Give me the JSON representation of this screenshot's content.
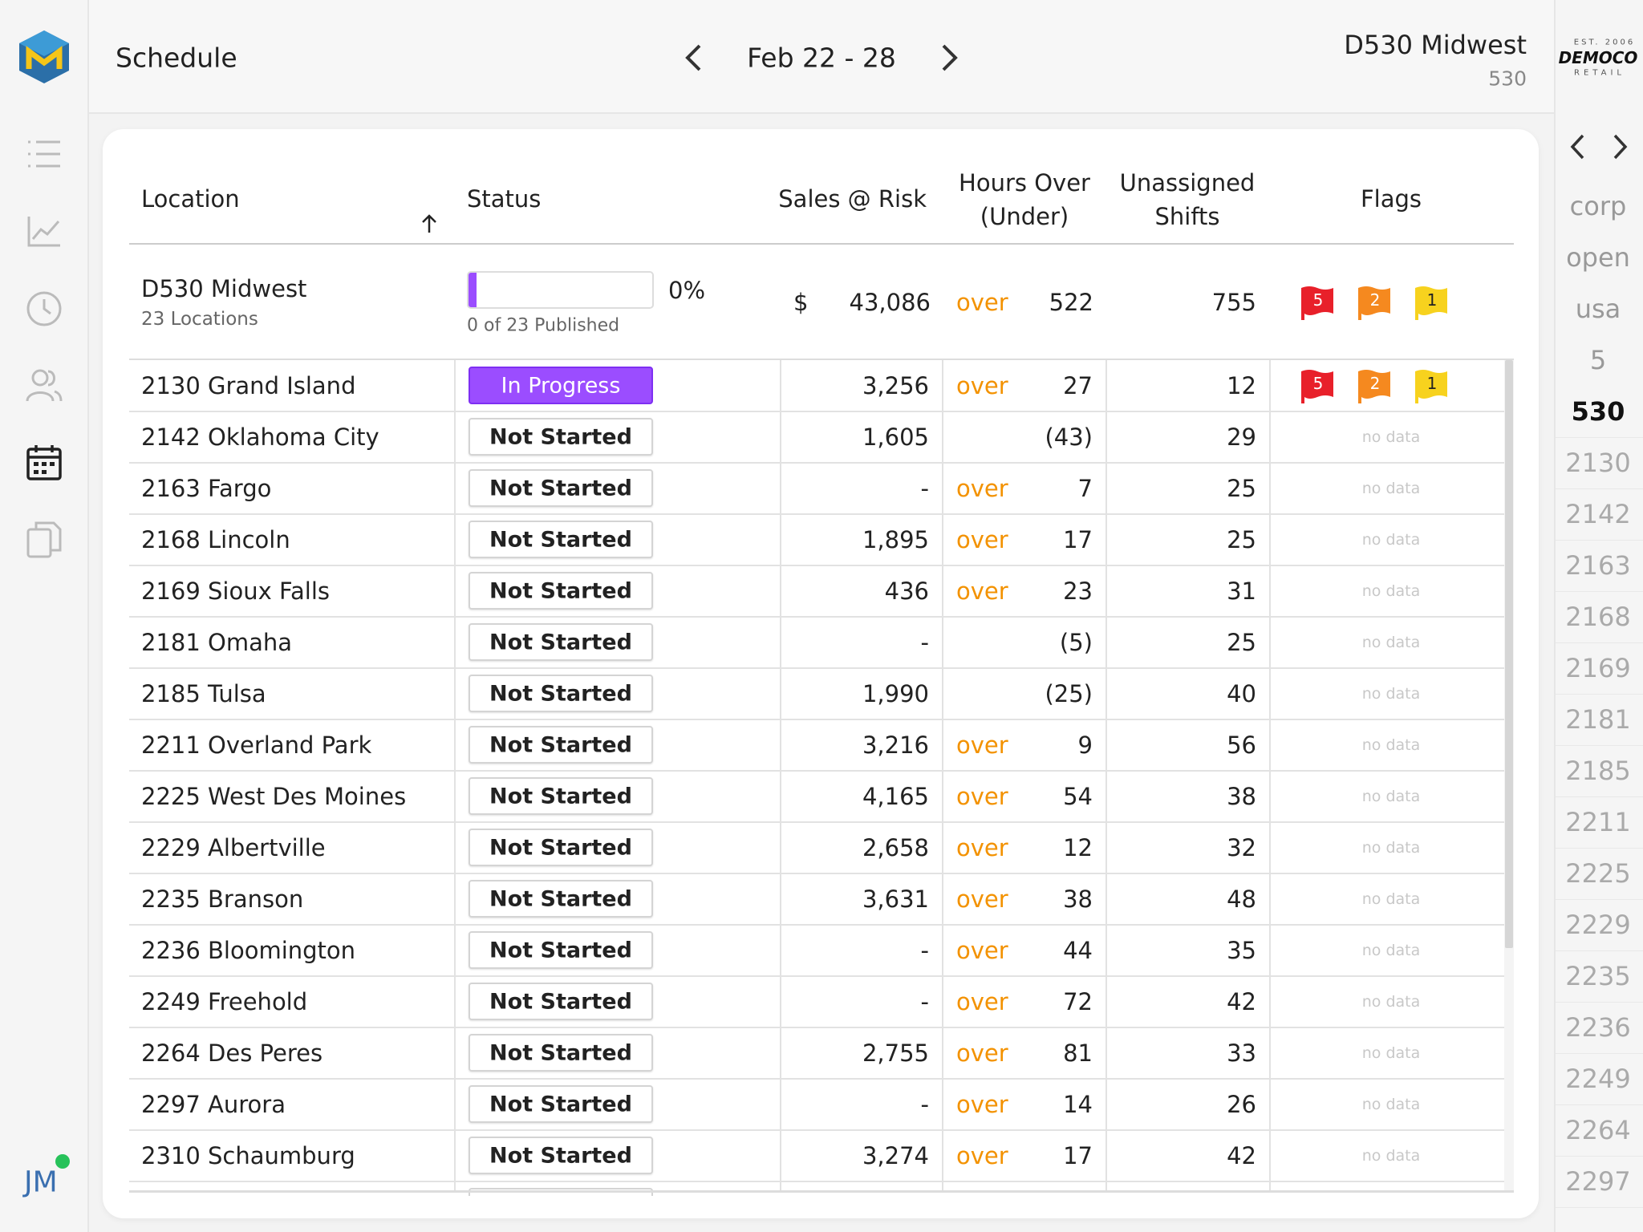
{
  "header": {
    "title": "Schedule",
    "date_range": "Feb 22 - 28",
    "district": "D530 Midwest",
    "district_id": "530",
    "brand": {
      "est": "EST. 2006",
      "name": "DEMOCO",
      "tagline": "RETAIL"
    }
  },
  "user": {
    "initials": "JM"
  },
  "table": {
    "columns": [
      "Location",
      "Status",
      "Sales @ Risk",
      "Hours Over (Under)",
      "Unassigned Shifts",
      "Flags"
    ],
    "summary": {
      "location": "D530 Midwest",
      "sublabel": "23 Locations",
      "progress": "0%",
      "published": "0 of 23 Published",
      "currency": "$",
      "sales": "43,086",
      "over": "over",
      "hours": "522",
      "unassigned": "755",
      "flags": [
        5,
        2,
        1
      ]
    },
    "rows": [
      {
        "location": "2130 Grand Island",
        "status": "In Progress",
        "sales": "3,256",
        "over": "over",
        "hours": "27",
        "unassigned": "12",
        "flags": [
          5,
          2,
          1
        ]
      },
      {
        "location": "2142 Oklahoma City",
        "status": "Not Started",
        "sales": "1,605",
        "over": null,
        "hours": "(43)",
        "unassigned": "29",
        "flags": "no data"
      },
      {
        "location": "2163 Fargo",
        "status": "Not Started",
        "sales": "-",
        "over": "over",
        "hours": "7",
        "unassigned": "25",
        "flags": "no data"
      },
      {
        "location": "2168 Lincoln",
        "status": "Not Started",
        "sales": "1,895",
        "over": "over",
        "hours": "17",
        "unassigned": "25",
        "flags": "no data"
      },
      {
        "location": "2169 Sioux Falls",
        "status": "Not Started",
        "sales": "436",
        "over": "over",
        "hours": "23",
        "unassigned": "31",
        "flags": "no data"
      },
      {
        "location": "2181 Omaha",
        "status": "Not Started",
        "sales": "-",
        "over": null,
        "hours": "(5)",
        "unassigned": "25",
        "flags": "no data"
      },
      {
        "location": "2185 Tulsa",
        "status": "Not Started",
        "sales": "1,990",
        "over": null,
        "hours": "(25)",
        "unassigned": "40",
        "flags": "no data"
      },
      {
        "location": "2211 Overland Park",
        "status": "Not Started",
        "sales": "3,216",
        "over": "over",
        "hours": "9",
        "unassigned": "56",
        "flags": "no data"
      },
      {
        "location": "2225 West Des Moines",
        "status": "Not Started",
        "sales": "4,165",
        "over": "over",
        "hours": "54",
        "unassigned": "38",
        "flags": "no data"
      },
      {
        "location": "2229 Albertville",
        "status": "Not Started",
        "sales": "2,658",
        "over": "over",
        "hours": "12",
        "unassigned": "32",
        "flags": "no data"
      },
      {
        "location": "2235 Branson",
        "status": "Not Started",
        "sales": "3,631",
        "over": "over",
        "hours": "38",
        "unassigned": "48",
        "flags": "no data"
      },
      {
        "location": "2236 Bloomington",
        "status": "Not Started",
        "sales": "-",
        "over": "over",
        "hours": "44",
        "unassigned": "35",
        "flags": "no data"
      },
      {
        "location": "2249 Freehold",
        "status": "Not Started",
        "sales": "-",
        "over": "over",
        "hours": "72",
        "unassigned": "42",
        "flags": "no data"
      },
      {
        "location": "2264 Des Peres",
        "status": "Not Started",
        "sales": "2,755",
        "over": "over",
        "hours": "81",
        "unassigned": "33",
        "flags": "no data"
      },
      {
        "location": "2297 Aurora",
        "status": "Not Started",
        "sales": "-",
        "over": "over",
        "hours": "14",
        "unassigned": "26",
        "flags": "no data"
      },
      {
        "location": "2310 Schaumburg",
        "status": "Not Started",
        "sales": "3,274",
        "over": "over",
        "hours": "17",
        "unassigned": "42",
        "flags": "no data"
      }
    ]
  },
  "right_nav": {
    "items": [
      "corp",
      "open",
      "usa",
      "5",
      "530",
      "2130",
      "2142",
      "2163",
      "2168",
      "2169",
      "2181",
      "2185",
      "2211",
      "2225",
      "2229",
      "2235",
      "2236",
      "2249",
      "2264",
      "2297"
    ],
    "active": "530"
  }
}
